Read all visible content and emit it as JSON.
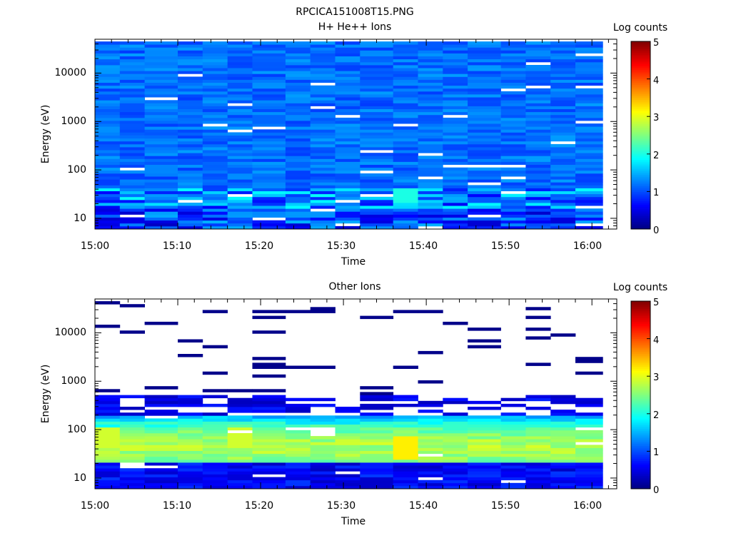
{
  "figure": {
    "title": "RPCICA151008T15.PNG"
  },
  "chart_data": [
    {
      "type": "heatmap",
      "title": "H+ He++ Ions",
      "xlabel": "Time",
      "ylabel": "Energy (eV)",
      "y_scale": "log",
      "xlim": [
        "15:00",
        "16:03"
      ],
      "ylim": [
        6,
        50000
      ],
      "x_tick_labels": [
        "15:00",
        "15:10",
        "15:20",
        "15:30",
        "15:40",
        "15:50",
        "16:00"
      ],
      "y_tick_labels": [
        "10",
        "100",
        "1000",
        "10000"
      ],
      "time_bin_starts": [
        "15:00",
        "15:03",
        "15:06",
        "15:10",
        "15:13",
        "15:16",
        "15:19",
        "15:23",
        "15:26",
        "15:29",
        "15:32",
        "15:36",
        "15:39",
        "15:42",
        "15:45",
        "15:49",
        "15:52",
        "15:55",
        "15:58"
      ],
      "energy_range_eV": [
        6,
        45000
      ],
      "energy_bins": 64,
      "typical_log_counts": "1.0 to 1.4 across all energies, up to 2 near 20-30 eV",
      "colorbar": {
        "label": "Log counts",
        "min": 0,
        "max": 5,
        "ticks": [
          "0",
          "1",
          "2",
          "3",
          "4",
          "5"
        ]
      }
    },
    {
      "type": "heatmap",
      "title": "Other Ions",
      "xlabel": "Time",
      "ylabel": "Energy (eV)",
      "y_scale": "log",
      "xlim": [
        "15:00",
        "16:03"
      ],
      "ylim": [
        6,
        50000
      ],
      "x_tick_labels": [
        "15:00",
        "15:10",
        "15:20",
        "15:30",
        "15:40",
        "15:50",
        "16:00"
      ],
      "y_tick_labels": [
        "10",
        "100",
        "1000",
        "10000"
      ],
      "time_bin_starts": [
        "15:00",
        "15:03",
        "15:06",
        "15:10",
        "15:13",
        "15:16",
        "15:19",
        "15:23",
        "15:26",
        "15:29",
        "15:32",
        "15:36",
        "15:39",
        "15:42",
        "15:45",
        "15:49",
        "15:52",
        "15:55",
        "15:58"
      ],
      "energy_range_eV": [
        6,
        45000
      ],
      "peak": {
        "energy_eV": 40,
        "time": "15:37",
        "log_counts": 3.2
      },
      "typical_log_counts": "2.0 to 3.2 between 20 and 150 eV, sparse counts near 0 above 300 eV",
      "colorbar": {
        "label": "Log counts",
        "min": 0,
        "max": 5,
        "ticks": [
          "0",
          "1",
          "2",
          "3",
          "4",
          "5"
        ]
      }
    }
  ]
}
